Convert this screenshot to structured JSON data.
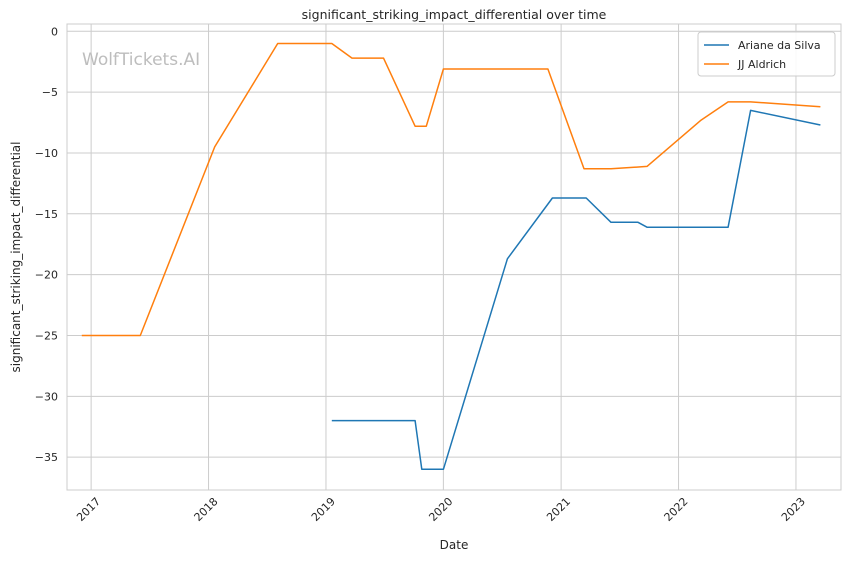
{
  "chart_data": {
    "type": "line",
    "title": "significant_striking_impact_differential over time",
    "xlabel": "Date",
    "ylabel": "significant_striking_impact_differential",
    "watermark": "WolfTickets.AI",
    "xlim": [
      "2016-10-18",
      "2023-05-21"
    ],
    "ylim": [
      -37.7,
      0.6
    ],
    "x_ticks": [
      "2017-01-01",
      "2018-01-01",
      "2019-01-01",
      "2020-01-01",
      "2021-01-01",
      "2022-01-01",
      "2023-01-01"
    ],
    "x_tick_labels": [
      "2017",
      "2018",
      "2019",
      "2020",
      "2021",
      "2022",
      "2023"
    ],
    "y_ticks": [
      0,
      -5,
      -10,
      -15,
      -20,
      -25,
      -30,
      -35
    ],
    "y_tick_labels": [
      "0",
      "−5",
      "−10",
      "−15",
      "−20",
      "−25",
      "−30",
      "−35"
    ],
    "grid": true,
    "legend_position": "top-right",
    "series": [
      {
        "name": "Ariane da Silva",
        "color": "#1f77b4",
        "points": [
          [
            "2019-01-19",
            -32.0
          ],
          [
            "2019-10-05",
            -32.0
          ],
          [
            "2019-10-26",
            -36.0
          ],
          [
            "2020-01-01",
            -36.0
          ],
          [
            "2020-07-18",
            -18.7
          ],
          [
            "2020-12-05",
            -13.7
          ],
          [
            "2021-03-20",
            -13.7
          ],
          [
            "2021-06-05",
            -15.7
          ],
          [
            "2021-08-28",
            -15.7
          ],
          [
            "2021-09-25",
            -16.1
          ],
          [
            "2022-06-04",
            -16.1
          ],
          [
            "2022-08-13",
            -6.5
          ],
          [
            "2023-03-18",
            -7.7
          ]
        ]
      },
      {
        "name": "JJ Aldrich",
        "color": "#ff7f0e",
        "points": [
          [
            "2016-12-03",
            -25.0
          ],
          [
            "2017-06-03",
            -25.0
          ],
          [
            "2018-01-20",
            -9.5
          ],
          [
            "2018-08-04",
            -1.0
          ],
          [
            "2019-01-19",
            -1.0
          ],
          [
            "2019-03-23",
            -2.2
          ],
          [
            "2019-06-29",
            -2.2
          ],
          [
            "2019-10-05",
            -7.8
          ],
          [
            "2019-11-09",
            -7.8
          ],
          [
            "2020-01-01",
            -3.1
          ],
          [
            "2020-11-21",
            -3.1
          ],
          [
            "2021-03-13",
            -11.3
          ],
          [
            "2021-06-05",
            -11.3
          ],
          [
            "2021-09-25",
            -11.1
          ],
          [
            "2022-03-12",
            -7.3
          ],
          [
            "2022-06-04",
            -5.8
          ],
          [
            "2022-08-13",
            -5.8
          ],
          [
            "2023-03-18",
            -6.2
          ]
        ]
      }
    ]
  }
}
